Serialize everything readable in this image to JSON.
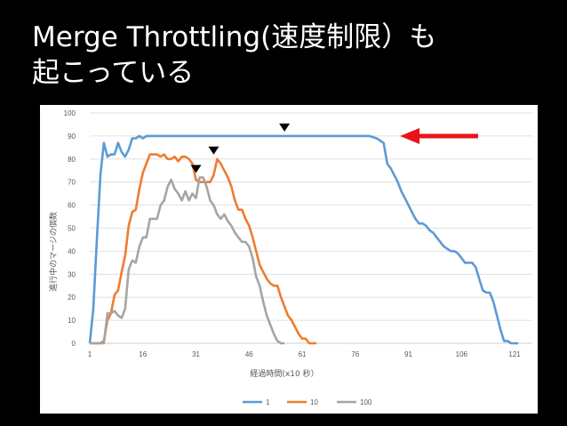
{
  "slide": {
    "title_line1": "Merge Throttling(速度制限）も",
    "title_line2": "起こっている"
  },
  "colors": {
    "background": "#000000",
    "series_1": "#5B9BD5",
    "series_10": "#ED7D31",
    "series_100": "#A5A5A5",
    "arrow": "#E8141B",
    "marker": "#000000"
  },
  "chart_data": {
    "type": "line",
    "xlabel": "経過時間(x10 秒）",
    "ylabel": "進行中のマージの個数",
    "xlim": [
      1,
      126
    ],
    "ylim": [
      0,
      100
    ],
    "x_ticks": [
      1,
      16,
      31,
      46,
      61,
      76,
      91,
      106,
      121
    ],
    "y_ticks": [
      0,
      10,
      20,
      30,
      40,
      50,
      60,
      70,
      80,
      90,
      100
    ],
    "grid": true,
    "legend_position": "bottom",
    "series": [
      {
        "name": "1",
        "points": [
          [
            1,
            0
          ],
          [
            2,
            15
          ],
          [
            3,
            45
          ],
          [
            4,
            73
          ],
          [
            5,
            87
          ],
          [
            6,
            81
          ],
          [
            7,
            82
          ],
          [
            8,
            82
          ],
          [
            9,
            87
          ],
          [
            10,
            83
          ],
          [
            11,
            81
          ],
          [
            12,
            84
          ],
          [
            13,
            89
          ],
          [
            14,
            89
          ],
          [
            15,
            90
          ],
          [
            16,
            89
          ],
          [
            17,
            90
          ],
          [
            30,
            90
          ],
          [
            50,
            90
          ],
          [
            70,
            90
          ],
          [
            80,
            90
          ],
          [
            82,
            89
          ],
          [
            84,
            87
          ],
          [
            85,
            78
          ],
          [
            86,
            76
          ],
          [
            87,
            73
          ],
          [
            88,
            70
          ],
          [
            89,
            66
          ],
          [
            90,
            63
          ],
          [
            91,
            60
          ],
          [
            92,
            57
          ],
          [
            93,
            54
          ],
          [
            94,
            52
          ],
          [
            95,
            52
          ],
          [
            96,
            51
          ],
          [
            97,
            49
          ],
          [
            98,
            48
          ],
          [
            99,
            46
          ],
          [
            100,
            44
          ],
          [
            101,
            42
          ],
          [
            102,
            41
          ],
          [
            103,
            40
          ],
          [
            104,
            40
          ],
          [
            105,
            39
          ],
          [
            106,
            37
          ],
          [
            107,
            35
          ],
          [
            108,
            35
          ],
          [
            109,
            35
          ],
          [
            110,
            33
          ],
          [
            111,
            28
          ],
          [
            112,
            23
          ],
          [
            113,
            22
          ],
          [
            114,
            22
          ],
          [
            115,
            18
          ],
          [
            116,
            12
          ],
          [
            117,
            6
          ],
          [
            118,
            1
          ],
          [
            119,
            1
          ],
          [
            120,
            0
          ],
          [
            122,
            0
          ]
        ]
      },
      {
        "name": "10",
        "points": [
          [
            1,
            0
          ],
          [
            4,
            0
          ],
          [
            5,
            1
          ],
          [
            6,
            10
          ],
          [
            7,
            13
          ],
          [
            8,
            21
          ],
          [
            9,
            23
          ],
          [
            10,
            31
          ],
          [
            11,
            38
          ],
          [
            12,
            51
          ],
          [
            13,
            57
          ],
          [
            14,
            58
          ],
          [
            15,
            67
          ],
          [
            16,
            74
          ],
          [
            17,
            78
          ],
          [
            18,
            82
          ],
          [
            19,
            82
          ],
          [
            20,
            82
          ],
          [
            21,
            81
          ],
          [
            22,
            82
          ],
          [
            23,
            80
          ],
          [
            24,
            80
          ],
          [
            25,
            81
          ],
          [
            26,
            79
          ],
          [
            27,
            81
          ],
          [
            28,
            81
          ],
          [
            29,
            80
          ],
          [
            30,
            78
          ],
          [
            31,
            71
          ],
          [
            32,
            70
          ],
          [
            33,
            70
          ],
          [
            34,
            70
          ],
          [
            35,
            70
          ],
          [
            36,
            73
          ],
          [
            37,
            80
          ],
          [
            38,
            78
          ],
          [
            39,
            75
          ],
          [
            40,
            72
          ],
          [
            41,
            68
          ],
          [
            42,
            62
          ],
          [
            43,
            58
          ],
          [
            44,
            58
          ],
          [
            45,
            54
          ],
          [
            46,
            51
          ],
          [
            47,
            46
          ],
          [
            48,
            40
          ],
          [
            49,
            34
          ],
          [
            50,
            31
          ],
          [
            51,
            28
          ],
          [
            52,
            26
          ],
          [
            53,
            25
          ],
          [
            54,
            25
          ],
          [
            55,
            20
          ],
          [
            56,
            16
          ],
          [
            57,
            12
          ],
          [
            58,
            10
          ],
          [
            59,
            7
          ],
          [
            60,
            4
          ],
          [
            61,
            2
          ],
          [
            62,
            2
          ],
          [
            63,
            0
          ],
          [
            65,
            0
          ]
        ]
      },
      {
        "name": "100",
        "points": [
          [
            1,
            0
          ],
          [
            5,
            0
          ],
          [
            6,
            13
          ],
          [
            7,
            13
          ],
          [
            8,
            14
          ],
          [
            9,
            12
          ],
          [
            10,
            11
          ],
          [
            11,
            15
          ],
          [
            12,
            32
          ],
          [
            13,
            36
          ],
          [
            14,
            35
          ],
          [
            15,
            42
          ],
          [
            16,
            46
          ],
          [
            17,
            46
          ],
          [
            18,
            54
          ],
          [
            19,
            54
          ],
          [
            20,
            54
          ],
          [
            21,
            60
          ],
          [
            22,
            62
          ],
          [
            23,
            68
          ],
          [
            24,
            71
          ],
          [
            25,
            67
          ],
          [
            26,
            65
          ],
          [
            27,
            62
          ],
          [
            28,
            66
          ],
          [
            29,
            62
          ],
          [
            30,
            65
          ],
          [
            31,
            63
          ],
          [
            32,
            72
          ],
          [
            33,
            72
          ],
          [
            34,
            68
          ],
          [
            35,
            62
          ],
          [
            36,
            60
          ],
          [
            37,
            56
          ],
          [
            38,
            54
          ],
          [
            39,
            56
          ],
          [
            40,
            53
          ],
          [
            41,
            51
          ],
          [
            42,
            48
          ],
          [
            43,
            46
          ],
          [
            44,
            44
          ],
          [
            45,
            44
          ],
          [
            46,
            42
          ],
          [
            47,
            37
          ],
          [
            48,
            29
          ],
          [
            49,
            25
          ],
          [
            50,
            18
          ],
          [
            51,
            12
          ],
          [
            52,
            8
          ],
          [
            53,
            4
          ],
          [
            54,
            1
          ],
          [
            55,
            0
          ],
          [
            56,
            0
          ]
        ]
      }
    ],
    "markers": [
      {
        "type": "down-triangle",
        "x": 56,
        "y": 90
      },
      {
        "type": "down-triangle",
        "x": 36,
        "y": 80
      },
      {
        "type": "down-triangle",
        "x": 31,
        "y": 72
      }
    ]
  }
}
